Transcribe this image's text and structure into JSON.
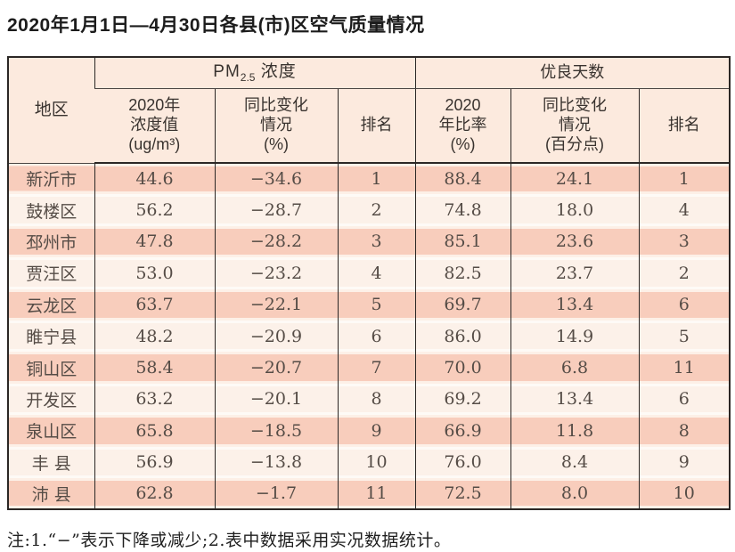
{
  "page": {
    "title": "2020年1月1日—4月30日各县(市)区空气质量情况",
    "note": "注:1.“−”表示下降或减少;2.表中数据采用实况数据统计。"
  },
  "colors": {
    "row_odd": "#f8cdbc",
    "row_even": "#fcf1e9",
    "header_bg": "#fceade",
    "border": "#2b2725"
  },
  "table": {
    "region_header": "地区",
    "pm25_group": {
      "prefix": "PM",
      "sub": "2.5",
      "suffix": " 浓度"
    },
    "good_days_group": "优良天数",
    "subheaders": {
      "pm_value": "2020年\n浓度值\n(ug/m³)",
      "pm_change": "同比变化\n情况\n(%)",
      "pm_rank": "排名",
      "days_ratio": "2020\n年比率\n(%)",
      "days_change": "同比变化\n情况\n(百分点)",
      "days_rank": "排名"
    },
    "rows": [
      {
        "region": "新沂市",
        "pm_value": "44.6",
        "pm_change": "−34.6",
        "pm_rank": "1",
        "days_ratio": "88.4",
        "days_change": "24.1",
        "days_rank": "1"
      },
      {
        "region": "鼓楼区",
        "pm_value": "56.2",
        "pm_change": "−28.7",
        "pm_rank": "2",
        "days_ratio": "74.8",
        "days_change": "18.0",
        "days_rank": "4"
      },
      {
        "region": "邳州市",
        "pm_value": "47.8",
        "pm_change": "−28.2",
        "pm_rank": "3",
        "days_ratio": "85.1",
        "days_change": "23.6",
        "days_rank": "3"
      },
      {
        "region": "贾汪区",
        "pm_value": "53.0",
        "pm_change": "−23.2",
        "pm_rank": "4",
        "days_ratio": "82.5",
        "days_change": "23.7",
        "days_rank": "2"
      },
      {
        "region": "云龙区",
        "pm_value": "63.7",
        "pm_change": "−22.1",
        "pm_rank": "5",
        "days_ratio": "69.7",
        "days_change": "13.4",
        "days_rank": "6"
      },
      {
        "region": "睢宁县",
        "pm_value": "48.2",
        "pm_change": "−20.9",
        "pm_rank": "6",
        "days_ratio": "86.0",
        "days_change": "14.9",
        "days_rank": "5"
      },
      {
        "region": "铜山区",
        "pm_value": "58.4",
        "pm_change": "−20.7",
        "pm_rank": "7",
        "days_ratio": "70.0",
        "days_change": "6.8",
        "days_rank": "11"
      },
      {
        "region": "开发区",
        "pm_value": "63.2",
        "pm_change": "−20.1",
        "pm_rank": "8",
        "days_ratio": "69.2",
        "days_change": "13.4",
        "days_rank": "6"
      },
      {
        "region": "泉山区",
        "pm_value": "65.8",
        "pm_change": "−18.5",
        "pm_rank": "9",
        "days_ratio": "66.9",
        "days_change": "11.8",
        "days_rank": "8"
      },
      {
        "region": "丰 县",
        "pm_value": "56.9",
        "pm_change": "−13.8",
        "pm_rank": "10",
        "days_ratio": "76.0",
        "days_change": "8.4",
        "days_rank": "9"
      },
      {
        "region": "沛 县",
        "pm_value": "62.8",
        "pm_change": "−1.7",
        "pm_rank": "11",
        "days_ratio": "72.5",
        "days_change": "8.0",
        "days_rank": "10"
      }
    ]
  }
}
